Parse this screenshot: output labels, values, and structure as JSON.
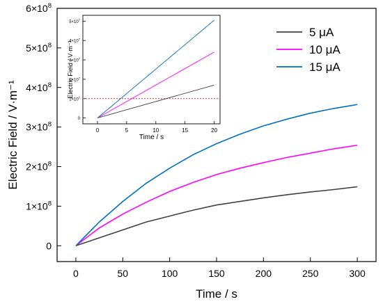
{
  "chart_data": [
    {
      "type": "line",
      "xlabel": "Time / s",
      "ylabel": "Electric Field / V·m⁻¹",
      "xlim": [
        -20,
        320
      ],
      "ylim": [
        -0.4,
        6
      ],
      "y_unit_note": "×10⁸",
      "x_ticks": [
        0,
        50,
        100,
        150,
        200,
        250,
        300
      ],
      "x_tick_labels": [
        "0",
        "50",
        "100",
        "150",
        "200",
        "250",
        "300"
      ],
      "y_ticks": [
        0,
        1,
        2,
        3,
        4,
        5,
        6
      ],
      "y_tick_labels": [
        {
          "mantissa": "0",
          "exp": ""
        },
        {
          "mantissa": "1×10",
          "exp": "8"
        },
        {
          "mantissa": "2×10",
          "exp": "8"
        },
        {
          "mantissa": "3×10",
          "exp": "8"
        },
        {
          "mantissa": "4×10",
          "exp": "8"
        },
        {
          "mantissa": "5×10",
          "exp": "8"
        },
        {
          "mantissa": "6×10",
          "exp": "8"
        }
      ],
      "legend_position": "top-right",
      "x": [
        0,
        25,
        50,
        75,
        100,
        125,
        150,
        175,
        200,
        225,
        250,
        275,
        300
      ],
      "series": [
        {
          "name": "5 μA",
          "color": "#404040",
          "values": [
            0,
            0.2,
            0.4,
            0.6,
            0.75,
            0.9,
            1.03,
            1.12,
            1.21,
            1.29,
            1.36,
            1.42,
            1.49
          ]
        },
        {
          "name": "10 μA",
          "color": "#ff00ff",
          "values": [
            0,
            0.45,
            0.8,
            1.1,
            1.37,
            1.6,
            1.8,
            1.96,
            2.1,
            2.23,
            2.34,
            2.45,
            2.54
          ]
        },
        {
          "name": "15 μA",
          "color": "#0070c0",
          "values": [
            0,
            0.6,
            1.12,
            1.58,
            1.96,
            2.3,
            2.58,
            2.82,
            3.03,
            3.2,
            3.35,
            3.47,
            3.57
          ]
        }
      ]
    },
    {
      "type": "line",
      "title": "inset",
      "xlabel": "Time / s",
      "ylabel": "Electric Field / V·m⁻¹",
      "xlim": [
        -2.5,
        21
      ],
      "ylim": [
        -0.3,
        5.3
      ],
      "x_ticks": [
        0,
        5,
        10,
        15,
        20
      ],
      "x_tick_labels": [
        "0",
        "5",
        "10",
        "15",
        "20"
      ],
      "y_ticks": [
        0,
        1,
        2,
        3,
        4,
        5
      ],
      "y_tick_labels": [
        {
          "mantissa": "0",
          "exp": ""
        },
        {
          "mantissa": "1×10",
          "exp": "7"
        },
        {
          "mantissa": "2×10",
          "exp": "7"
        },
        {
          "mantissa": "3×10",
          "exp": "7"
        },
        {
          "mantissa": "4×10",
          "exp": "7"
        },
        {
          "mantissa": "5×10",
          "exp": "7"
        }
      ],
      "x": [
        0,
        20
      ],
      "series": [
        {
          "name": "5 μA",
          "color": "#404040",
          "values": [
            0,
            1.7
          ]
        },
        {
          "name": "10 μA",
          "color": "#ff00ff",
          "values": [
            0,
            3.4
          ]
        },
        {
          "name": "15 μA",
          "color": "#0070c0",
          "values": [
            0,
            5.05
          ]
        }
      ],
      "reference_line": {
        "y": 1.0,
        "color": "#e03030",
        "style": "dotted"
      }
    }
  ]
}
